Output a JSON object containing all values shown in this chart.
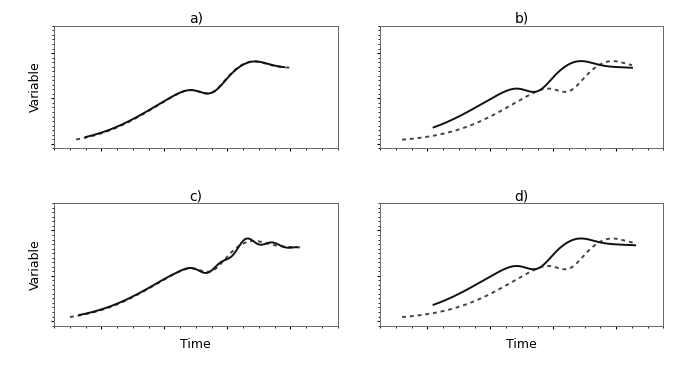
{
  "panels": [
    "a)",
    "b)",
    "c)",
    "d)"
  ],
  "ylabel": "Variable",
  "xlabel": "Time",
  "background_color": "#ffffff",
  "line_color": "#111111",
  "dot_color": "#444444",
  "panel_title_fontsize": 10,
  "axis_label_fontsize": 9,
  "dot_linewidth": 1.4,
  "solid_linewidth": 1.4
}
